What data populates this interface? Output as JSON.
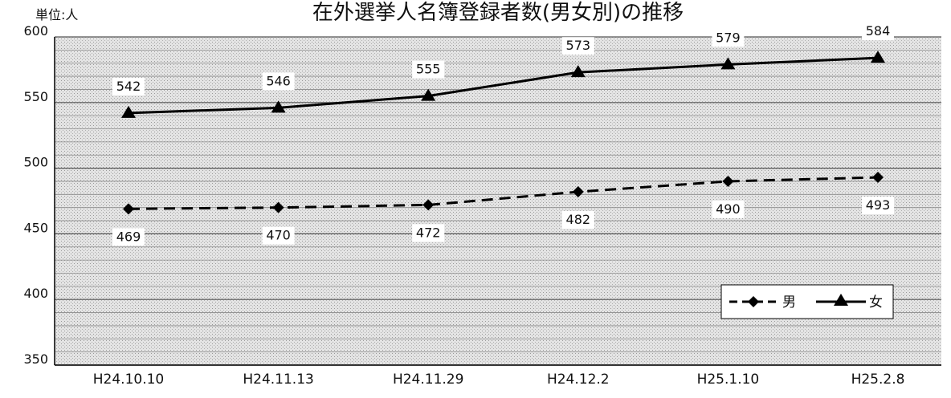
{
  "chart_data": {
    "type": "line",
    "title": "在外選挙人名簿登録者数(男女別)の推移",
    "unit_label": "単位:人",
    "categories": [
      "H24.10.10",
      "H24.11.13",
      "H24.11.29",
      "H24.12.2",
      "H25.1.10",
      "H25.2.8"
    ],
    "series": [
      {
        "name": "男",
        "values": [
          469,
          470,
          472,
          482,
          490,
          493
        ],
        "line_style": "dashed",
        "marker": "diamond",
        "color": "#000000"
      },
      {
        "name": "女",
        "values": [
          542,
          546,
          555,
          573,
          579,
          584
        ],
        "line_style": "solid",
        "marker": "triangle",
        "color": "#000000"
      }
    ],
    "ylim": [
      350,
      600
    ],
    "yticks": [
      350,
      400,
      450,
      500,
      550,
      600
    ],
    "grid": true,
    "legend_position": "bottom-right",
    "background": "#d9d9d9"
  }
}
